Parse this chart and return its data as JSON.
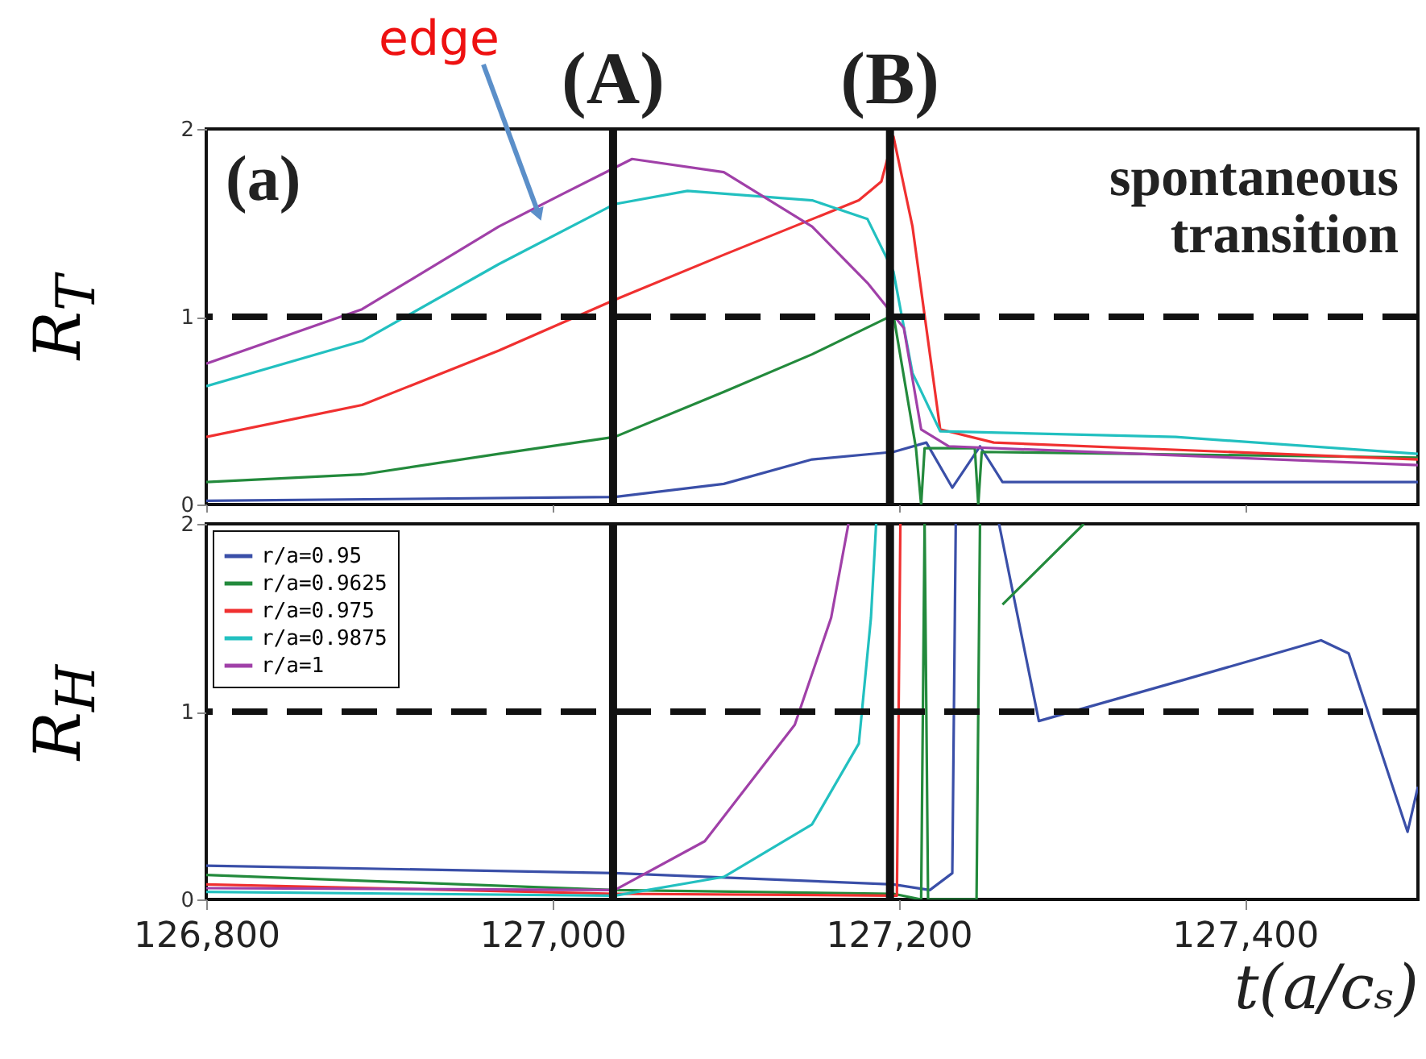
{
  "chart_data": [
    {
      "type": "line",
      "ylabel": "R$_{T}$",
      "xlim": [
        126800,
        127500
      ],
      "xticks": [
        {
          "value": 126800,
          "label": null
        },
        {
          "value": 127000,
          "label": null
        },
        {
          "value": 127200,
          "label": null
        },
        {
          "value": 127400,
          "label": null
        }
      ],
      "ylim": [
        0,
        2
      ],
      "yticks": [
        0,
        1,
        2
      ],
      "tick_labels": "y",
      "grid": false,
      "legend": false,
      "annotations": [
        "(a)",
        "spontaneous\ntransition",
        "edge"
      ],
      "ref_lines": [
        {
          "axis": "x",
          "value": 127035,
          "label": "(A)",
          "color": "#111111"
        },
        {
          "axis": "x",
          "value": 127195,
          "label": "(B)",
          "color": "#111111"
        },
        {
          "axis": "y",
          "value": 1,
          "color": "#111111",
          "line_style": "dashed"
        }
      ],
      "series": [
        {
          "color": "#3a4fa8",
          "x": [
            126800,
            127036,
            127099,
            127150,
            127197,
            127216,
            127231,
            127247,
            127260,
            127500
          ],
          "values": [
            0.02,
            0.04,
            0.11,
            0.24,
            0.28,
            0.33,
            0.09,
            0.31,
            0.12,
            0.12
          ]
        },
        {
          "color": "#238a3c",
          "x": [
            126800,
            126890,
            126969,
            127036,
            127099,
            127150,
            127197,
            127210,
            127213,
            127215,
            127244,
            127246,
            127248,
            127500
          ],
          "values": [
            0.12,
            0.16,
            0.27,
            0.36,
            0.6,
            0.8,
            1.01,
            0.3,
            0,
            0.3,
            0.3,
            0,
            0.28,
            0.25
          ]
        },
        {
          "color": "#f03030",
          "x": [
            126800,
            126890,
            126969,
            127036,
            127099,
            127177,
            127190,
            127197,
            127208,
            127224,
            127255,
            127500
          ],
          "values": [
            0.36,
            0.53,
            0.82,
            1.09,
            1.33,
            1.62,
            1.72,
            1.96,
            1.48,
            0.4,
            0.33,
            0.24
          ]
        },
        {
          "color": "#22c0c0",
          "x": [
            126800,
            126890,
            126969,
            127036,
            127078,
            127150,
            127182,
            127197,
            127208,
            127224,
            127360,
            127500
          ],
          "values": [
            0.63,
            0.87,
            1.28,
            1.6,
            1.67,
            1.62,
            1.52,
            1.24,
            0.7,
            0.39,
            0.36,
            0.27
          ]
        },
        {
          "color": "#a040a8",
          "x": [
            126800,
            126890,
            126969,
            127005,
            127046,
            127099,
            127150,
            127182,
            127203,
            127213,
            127229,
            127500
          ],
          "values": [
            0.75,
            1.04,
            1.48,
            1.65,
            1.84,
            1.77,
            1.48,
            1.18,
            0.94,
            0.4,
            0.31,
            0.21
          ]
        }
      ]
    },
    {
      "type": "line",
      "ylabel": "R$_{H}$",
      "xlabel": "t(a/cₛ)",
      "xlim": [
        126800,
        127500
      ],
      "xticks": [
        {
          "value": 126800,
          "label": "126,800"
        },
        {
          "value": 127000,
          "label": "127,000"
        },
        {
          "value": 127200,
          "label": "127,200"
        },
        {
          "value": 127400,
          "label": "127,400"
        }
      ],
      "ylim": [
        0,
        2
      ],
      "yticks": [
        0,
        1,
        2
      ],
      "grid": false,
      "legend": "top left",
      "ref_lines": [
        {
          "axis": "x",
          "value": 127035,
          "color": "#111111"
        },
        {
          "axis": "x",
          "value": 127195,
          "color": "#111111"
        },
        {
          "axis": "y",
          "value": 1,
          "color": "#111111",
          "line_style": "dashed"
        }
      ],
      "series": [
        {
          "name": "r/a=0.95",
          "color": "#3a4fa8",
          "x": [
            126800,
            127036,
            127197,
            127218,
            127231,
            127233,
            127245,
            127258,
            127281,
            127365,
            127444,
            127460,
            127494,
            127500
          ],
          "values": [
            0.18,
            0.14,
            0.08,
            0.05,
            0.14,
            2,
            null,
            2,
            0.95,
            1.17,
            1.38,
            1.31,
            0.36,
            0.6
          ]
        },
        {
          "name": "r/a=0.9625",
          "color": "#238a3c",
          "x": [
            126800,
            127036,
            127197,
            127213,
            127215,
            127217,
            127245,
            127247,
            127255,
            127260,
            127307
          ],
          "values": [
            0.13,
            0.05,
            0.03,
            0,
            2,
            0,
            0,
            2,
            null,
            1.57,
            2
          ]
        },
        {
          "name": "r/a=0.975",
          "color": "#f03030",
          "x": [
            126800,
            127036,
            127199,
            127201
          ],
          "values": [
            0.08,
            0.03,
            0.02,
            2
          ]
        },
        {
          "name": "r/a=0.9875",
          "color": "#22c0c0",
          "x": [
            126800,
            127036,
            127099,
            127150,
            127177,
            127184,
            127187
          ],
          "values": [
            0.04,
            0.02,
            0.12,
            0.4,
            0.83,
            1.5,
            2
          ]
        },
        {
          "name": "r/a=1",
          "color": "#a040a8",
          "x": [
            126800,
            127036,
            127088,
            127140,
            127161,
            127171
          ],
          "values": [
            0.06,
            0.05,
            0.31,
            0.93,
            1.5,
            2
          ]
        }
      ]
    }
  ]
}
